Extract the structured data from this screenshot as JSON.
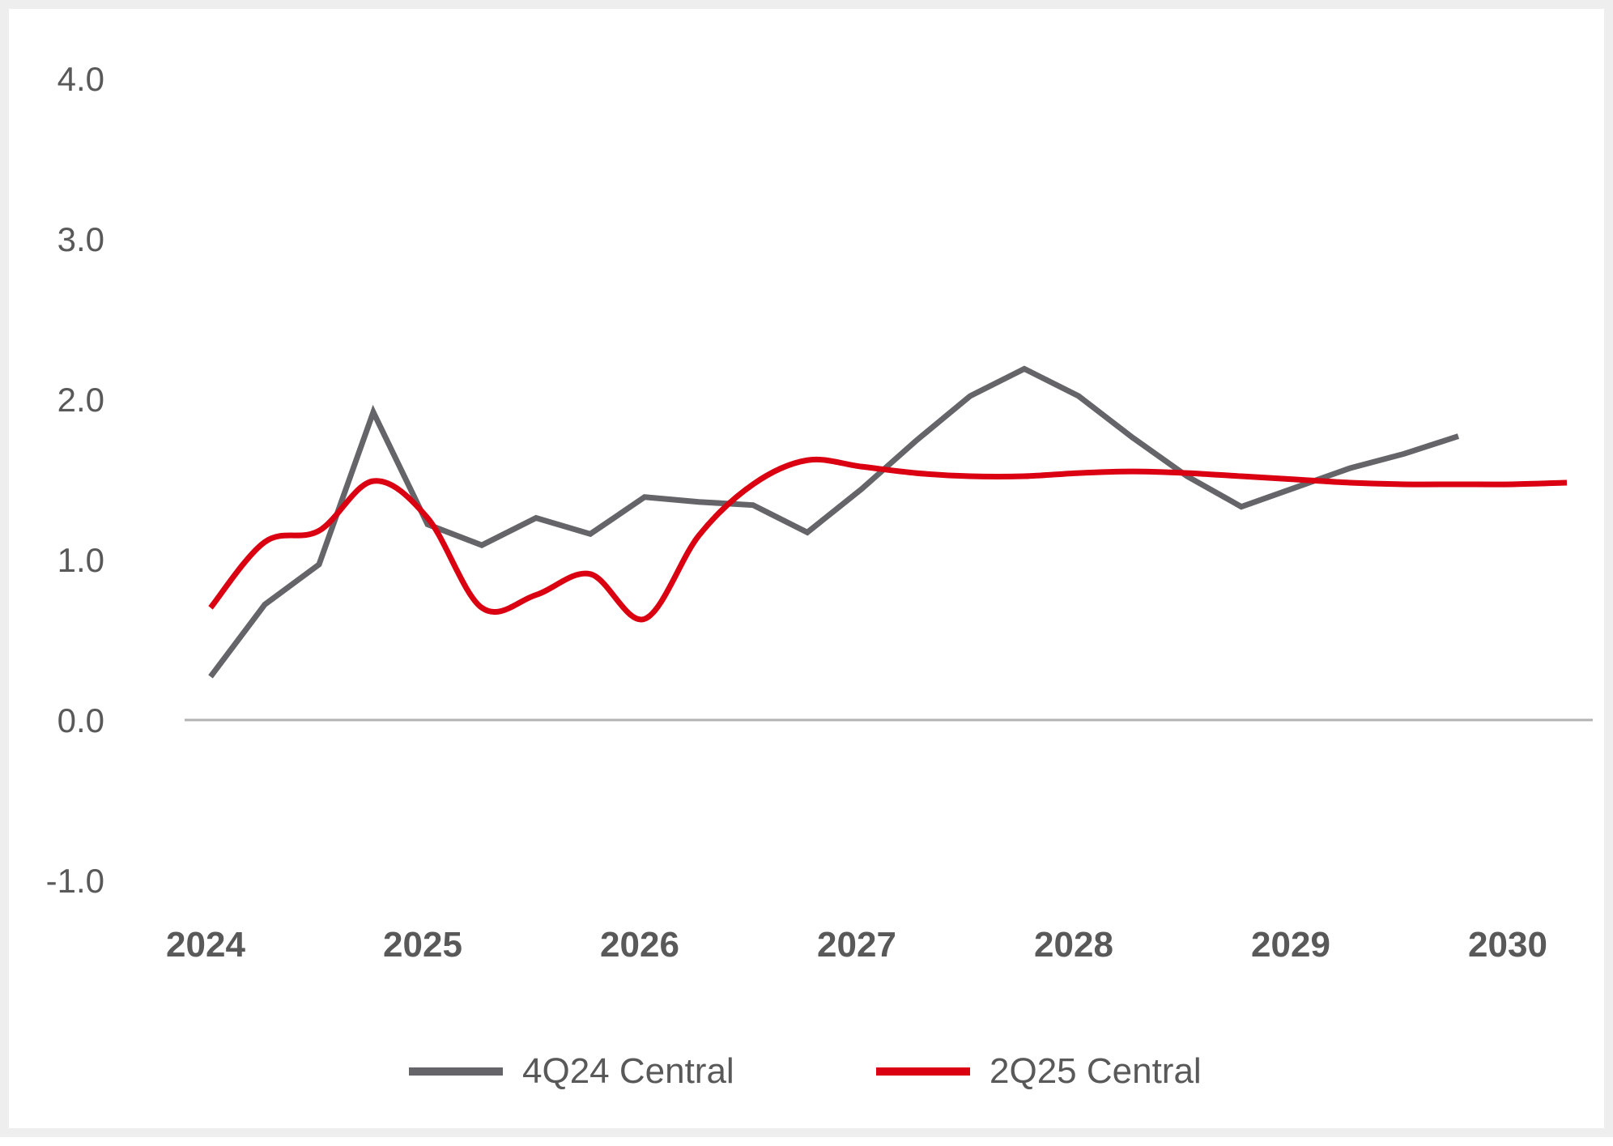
{
  "chart_data": {
    "type": "line",
    "title": "",
    "xlabel": "",
    "ylabel": "",
    "ylim": [
      -1.0,
      4.0
    ],
    "yticks": [
      "4.0",
      "3.0",
      "2.0",
      "1.0",
      "0.0",
      "-1.0"
    ],
    "xticks": [
      "2024",
      "2025",
      "2026",
      "2027",
      "2028",
      "2029",
      "2030"
    ],
    "grid": false,
    "legend_position": "bottom",
    "series": [
      {
        "name": "4Q24 Central",
        "color": "#646469",
        "smooth": false,
        "x": [
          2024.0,
          2024.25,
          2024.5,
          2024.75,
          2025.0,
          2025.25,
          2025.5,
          2025.75,
          2026.0,
          2026.25,
          2026.5,
          2026.75,
          2027.0,
          2027.25,
          2027.5,
          2027.75,
          2028.0,
          2028.25,
          2028.5,
          2028.75,
          2029.0,
          2029.25,
          2029.5,
          2029.75
        ],
        "values": [
          0.27,
          0.72,
          0.97,
          1.92,
          1.22,
          1.09,
          1.26,
          1.16,
          1.39,
          1.36,
          1.34,
          1.17,
          1.44,
          1.74,
          2.02,
          2.19,
          2.02,
          1.76,
          1.52,
          1.33,
          1.45,
          1.57,
          1.66,
          1.77
        ]
      },
      {
        "name": "2Q25 Central",
        "color": "#db0011",
        "smooth": true,
        "x": [
          2024.0,
          2024.25,
          2024.5,
          2024.75,
          2025.0,
          2025.25,
          2025.5,
          2025.75,
          2026.0,
          2026.25,
          2026.5,
          2026.75,
          2027.0,
          2027.25,
          2027.5,
          2027.75,
          2028.0,
          2028.25,
          2028.5,
          2028.75,
          2029.0,
          2029.25,
          2029.5,
          2029.75,
          2030.0,
          2030.25
        ],
        "values": [
          0.7,
          1.11,
          1.18,
          1.49,
          1.26,
          0.7,
          0.78,
          0.91,
          0.63,
          1.15,
          1.47,
          1.62,
          1.58,
          1.54,
          1.52,
          1.52,
          1.54,
          1.55,
          1.54,
          1.52,
          1.5,
          1.48,
          1.47,
          1.47,
          1.47,
          1.48
        ]
      }
    ]
  }
}
